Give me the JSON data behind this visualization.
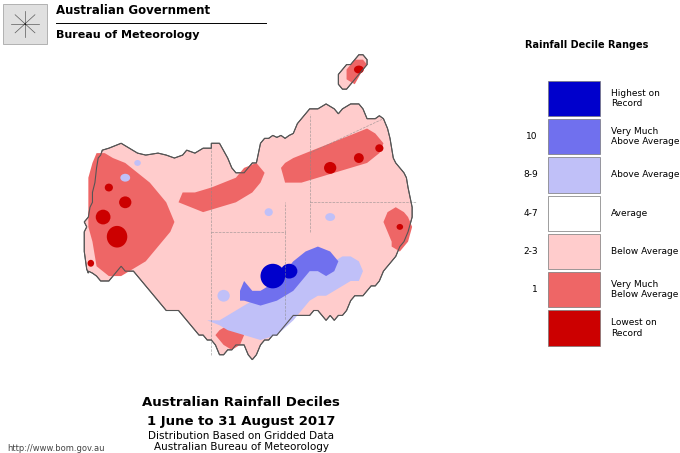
{
  "title_line1": "Australian Rainfall Deciles",
  "title_line2": "1 June to 31 August 2017",
  "title_line3": "Distribution Based on Gridded Data",
  "title_line4": "Australian Bureau of Meteorology",
  "gov_line1": "Australian Government",
  "gov_line2": "Bureau of Meteorology",
  "url": "http://www.bom.gov.au",
  "legend_title": "Rainfall Decile Ranges",
  "legend_items": [
    {
      "label": "Highest on\nRecord",
      "color": "#0000CC",
      "decile": ""
    },
    {
      "label": "Very Much\nAbove Average",
      "color": "#7070EE",
      "decile": "10"
    },
    {
      "label": "Above Average",
      "color": "#C0C0F8",
      "decile": "8-9"
    },
    {
      "label": "Average",
      "color": "#FFFFFF",
      "decile": "4-7"
    },
    {
      "label": "Below Average",
      "color": "#FFCCCC",
      "decile": "2-3"
    },
    {
      "label": "Very Much\nBelow Average",
      "color": "#EE6666",
      "decile": "1"
    },
    {
      "label": "Lowest on\nRecord",
      "color": "#CC0000",
      "decile": ""
    }
  ],
  "bg_color": "#FFFFFF",
  "fig_width": 6.8,
  "fig_height": 4.53,
  "dpi": 100,
  "aus_extent": [
    112.5,
    154.5,
    -44.5,
    -9.5
  ],
  "colors": {
    "ocean": "#FFFFFF",
    "below_avg": "#FFCCCC",
    "much_below": "#EE6666",
    "lowest": "#CC0000",
    "above_avg": "#C0C0F8",
    "much_above": "#7070EE",
    "highest": "#0000CC",
    "avg": "#FFFFFF",
    "coast": "#555555",
    "state_line": "#888888"
  }
}
